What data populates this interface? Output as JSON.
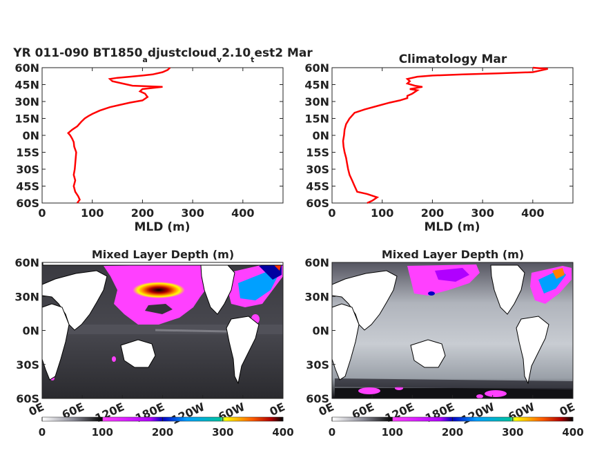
{
  "profile_left": {
    "title_main": "YR 011-090 BT1850",
    "title_sub1": "a",
    "title_mid1": "djustcloud",
    "title_sub2": "v",
    "title_mid2": "2.10",
    "title_sub3": "t",
    "title_end": "est2 Mar"
  },
  "profile_right": {
    "title": "Climatology Mar"
  },
  "map_left": {
    "title": "Mixed Layer Depth (m)"
  },
  "map_right": {
    "title": "Mixed Layer Depth (m)"
  },
  "lat_ticks_profile": [
    "60N",
    "45N",
    "30N",
    "15N",
    "0N",
    "15S",
    "30S",
    "45S",
    "60S"
  ],
  "lat_ticks_map": [
    "60N",
    "30N",
    "0N",
    "30S",
    "60S"
  ],
  "lon_ticks": [
    "0E",
    "60E",
    "120E",
    "180E",
    "120W",
    "60W",
    "0E"
  ],
  "colorbar_ticks": [
    "0",
    "100",
    "200",
    "300",
    "400"
  ],
  "colors": {
    "profile_line": "#ff0000"
  },
  "chart_data": [
    {
      "type": "line",
      "title": "YR 011-090 BT1850_adjustcloud_v2.10_test2 Mar",
      "xlabel": "MLD (m)",
      "ylabel": "",
      "xlim": [
        0,
        480
      ],
      "ylim": [
        -60,
        60
      ],
      "series": [
        {
          "values_xy": [
            [
              70,
              -60
            ],
            [
              75,
              -57
            ],
            [
              72,
              -54
            ],
            [
              66,
              -50
            ],
            [
              63,
              -45
            ],
            [
              66,
              -40
            ],
            [
              63,
              -35
            ],
            [
              65,
              -30
            ],
            [
              66,
              -25
            ],
            [
              67,
              -20
            ],
            [
              68,
              -15
            ],
            [
              64,
              -10
            ],
            [
              63,
              -6
            ],
            [
              60,
              -3
            ],
            [
              56,
              0
            ],
            [
              52,
              2
            ],
            [
              60,
              5
            ],
            [
              70,
              8
            ],
            [
              78,
              12
            ],
            [
              85,
              15
            ],
            [
              92,
              17
            ],
            [
              100,
              19
            ],
            [
              115,
              22
            ],
            [
              135,
              25
            ],
            [
              155,
              27
            ],
            [
              175,
              29
            ],
            [
              200,
              31
            ],
            [
              210,
              34
            ],
            [
              205,
              37
            ],
            [
              195,
              39
            ],
            [
              200,
              41
            ],
            [
              240,
              43
            ],
            [
              180,
              44
            ],
            [
              160,
              46
            ],
            [
              140,
              48
            ],
            [
              135,
              50
            ],
            [
              150,
              51
            ],
            [
              175,
              52
            ],
            [
              200,
              53
            ],
            [
              220,
              54
            ],
            [
              240,
              56
            ],
            [
              250,
              58
            ],
            [
              255,
              60
            ]
          ]
        }
      ]
    },
    {
      "type": "line",
      "title": "Climatology Mar",
      "xlabel": "MLD (m)",
      "ylabel": "",
      "xlim": [
        0,
        480
      ],
      "ylim": [
        -60,
        60
      ],
      "series": [
        {
          "values_xy": [
            [
              70,
              -60
            ],
            [
              80,
              -58
            ],
            [
              90,
              -55
            ],
            [
              70,
              -52
            ],
            [
              50,
              -50
            ],
            [
              45,
              -45
            ],
            [
              40,
              -40
            ],
            [
              35,
              -35
            ],
            [
              32,
              -30
            ],
            [
              30,
              -25
            ],
            [
              28,
              -20
            ],
            [
              25,
              -15
            ],
            [
              23,
              -10
            ],
            [
              22,
              -5
            ],
            [
              24,
              0
            ],
            [
              25,
              5
            ],
            [
              28,
              10
            ],
            [
              35,
              15
            ],
            [
              45,
              20
            ],
            [
              65,
              23
            ],
            [
              90,
              26
            ],
            [
              115,
              29
            ],
            [
              135,
              31
            ],
            [
              150,
              33
            ],
            [
              150,
              35
            ],
            [
              160,
              37
            ],
            [
              170,
              40
            ],
            [
              155,
              41
            ],
            [
              180,
              43
            ],
            [
              165,
              44
            ],
            [
              150,
              46
            ],
            [
              155,
              48
            ],
            [
              150,
              50
            ],
            [
              170,
              52
            ],
            [
              200,
              53
            ],
            [
              260,
              54
            ],
            [
              330,
              55
            ],
            [
              400,
              56
            ],
            [
              420,
              58
            ],
            [
              430,
              59
            ],
            [
              400,
              60
            ]
          ]
        }
      ]
    }
  ]
}
